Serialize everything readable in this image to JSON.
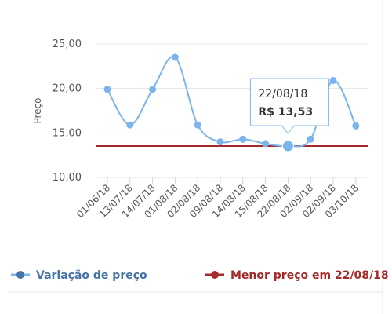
{
  "chart_data": {
    "type": "line",
    "y_label": "Preço",
    "categories": [
      "01/06/18",
      "13/07/18",
      "14/07/18",
      "01/08/18",
      "02/08/18",
      "09/08/18",
      "14/08/18",
      "15/08/18",
      "22/08/18",
      "02/09/18",
      "02/09/18",
      "03/10/18"
    ],
    "series": [
      {
        "name": "Variação de preço",
        "color": "#7cb5ec",
        "values": [
          19.9,
          15.9,
          19.9,
          23.5,
          15.9,
          14.0,
          14.3,
          13.8,
          13.53,
          14.3,
          20.9,
          15.8
        ],
        "value_labels": [
          null,
          null,
          null,
          null,
          null,
          null,
          null,
          null,
          "R$ 13,53",
          null,
          null,
          null
        ]
      }
    ],
    "reference_line": {
      "name": "Menor preço em 22/08/18",
      "value": 13.53,
      "color": "#a52a2a"
    },
    "tooltip_index": 8,
    "ylim": [
      10,
      25
    ],
    "yticks": [
      {
        "value": 10,
        "label": "10,00"
      },
      {
        "value": 15,
        "label": "15,00"
      },
      {
        "value": 20,
        "label": "20,00"
      },
      {
        "value": 25,
        "label": "25,00"
      }
    ],
    "grid": true
  }
}
